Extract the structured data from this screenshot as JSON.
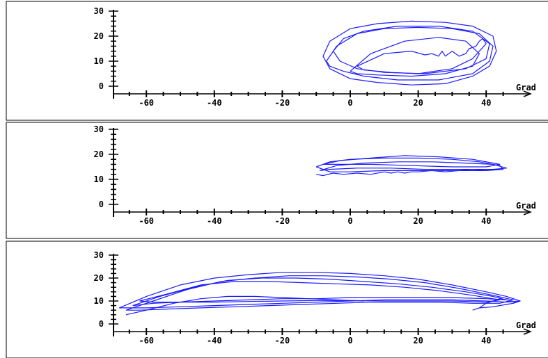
{
  "chart_data": [
    {
      "type": "line",
      "xlabel": "Grad",
      "ylabel": "",
      "xlim": [
        -70,
        50
      ],
      "ylim": [
        0,
        30
      ],
      "x_ticks": [
        "-60",
        "-40",
        "-20",
        "0",
        "20",
        "40"
      ],
      "y_ticks": [
        "0",
        "10",
        "20",
        "30"
      ],
      "grid": false,
      "color": "#1a1aff",
      "series": [
        {
          "x": [
            -8,
            -6,
            0,
            8,
            18,
            28,
            36,
            42,
            43,
            41,
            36,
            28,
            18,
            8,
            0,
            -6,
            -8
          ],
          "y": [
            12,
            18,
            23,
            25,
            26,
            25.5,
            24,
            20,
            14,
            8,
            4,
            1,
            0.5,
            1.5,
            3,
            7,
            12
          ]
        },
        {
          "x": [
            -7,
            -4,
            2,
            10,
            20,
            30,
            38,
            42,
            41,
            36,
            26,
            14,
            4,
            -2,
            -6,
            -7
          ],
          "y": [
            10,
            16,
            21,
            23,
            23.5,
            23,
            21,
            16,
            10,
            5,
            2.5,
            2.5,
            4,
            6,
            8,
            10
          ]
        },
        {
          "x": [
            -5,
            -2,
            4,
            14,
            26,
            36,
            41,
            40,
            34,
            22,
            10,
            2,
            -3,
            -5
          ],
          "y": [
            14,
            19,
            22,
            24,
            24,
            22,
            17,
            11,
            7,
            5,
            5.5,
            7,
            10,
            14
          ]
        },
        {
          "x": [
            0,
            6,
            16,
            26,
            34,
            38,
            36,
            28,
            18,
            8,
            2,
            0
          ],
          "y": [
            6,
            13,
            18,
            19.5,
            18,
            13,
            8,
            5,
            4,
            4.5,
            5,
            6
          ]
        },
        {
          "x": [
            2,
            10,
            18,
            22,
            24,
            26,
            27,
            28,
            29,
            30,
            32,
            34,
            35,
            37,
            38,
            39,
            40,
            36,
            30,
            20,
            12,
            4,
            2
          ],
          "y": [
            8,
            13,
            14,
            12.5,
            13,
            12,
            14,
            12,
            13,
            14,
            12,
            13,
            15,
            16,
            18,
            19,
            17,
            11,
            7,
            5,
            5.5,
            6.5,
            8
          ]
        }
      ]
    },
    {
      "type": "line",
      "xlabel": "Grad",
      "ylabel": "",
      "xlim": [
        -70,
        50
      ],
      "ylim": [
        0,
        30
      ],
      "x_ticks": [
        "-60",
        "-40",
        "-20",
        "0",
        "20",
        "40"
      ],
      "y_ticks": [
        "0",
        "10",
        "20",
        "30"
      ],
      "grid": false,
      "color": "#1a1aff",
      "series": [
        {
          "x": [
            -10,
            -6,
            0,
            10,
            20,
            30,
            38,
            44,
            45,
            40,
            30,
            20,
            10,
            0,
            -6,
            -10
          ],
          "y": [
            15,
            17,
            18,
            18.5,
            18.5,
            18,
            17,
            15.5,
            14,
            13.5,
            13.5,
            13.5,
            13.5,
            13,
            13,
            15
          ]
        },
        {
          "x": [
            -9,
            -4,
            4,
            14,
            24,
            34,
            42,
            46,
            42,
            32,
            22,
            12,
            2,
            -6,
            -9
          ],
          "y": [
            13.5,
            15.5,
            16.5,
            17,
            17,
            16.5,
            16,
            14.5,
            14,
            14,
            14,
            14.5,
            14.5,
            14,
            13.5
          ]
        },
        {
          "x": [
            -8,
            -3,
            6,
            16,
            26,
            36,
            44,
            40,
            30,
            18,
            6,
            -2,
            -8
          ],
          "y": [
            16,
            17.5,
            18.5,
            19.5,
            19,
            18,
            16,
            15,
            15,
            15.5,
            16,
            16,
            16
          ]
        },
        {
          "x": [
            -10,
            -8,
            -5,
            -2,
            2,
            6,
            10,
            12,
            14,
            16,
            18,
            20,
            24,
            28,
            32,
            36,
            40,
            44
          ],
          "y": [
            12,
            11.5,
            12.5,
            12,
            12.5,
            12,
            13,
            12.5,
            13,
            12.5,
            13,
            13,
            13.5,
            13,
            13.5,
            14,
            13.5,
            14
          ]
        }
      ]
    },
    {
      "type": "line",
      "xlabel": "Grad",
      "ylabel": "",
      "xlim": [
        -70,
        50
      ],
      "ylim": [
        0,
        30
      ],
      "x_ticks": [
        "-60",
        "-40",
        "-20",
        "0",
        "20",
        "40"
      ],
      "y_ticks": [
        "0",
        "10",
        "20",
        "30"
      ],
      "grid": false,
      "color": "#1a1aff",
      "series": [
        {
          "x": [
            -68,
            -60,
            -50,
            -40,
            -30,
            -20,
            -10,
            0,
            10,
            20,
            30,
            40,
            46,
            50,
            46,
            40,
            30,
            20,
            10,
            0,
            -10,
            -20,
            -30,
            -40,
            -50,
            -60,
            -68
          ],
          "y": [
            7,
            12,
            17,
            20,
            21.5,
            22.5,
            22.5,
            22,
            21,
            19.5,
            17,
            14,
            12,
            10,
            9.5,
            10,
            10.5,
            10.5,
            10.5,
            10,
            9.5,
            9,
            8.5,
            8,
            7.5,
            7,
            7
          ]
        },
        {
          "x": [
            -66,
            -58,
            -48,
            -38,
            -28,
            -18,
            -8,
            2,
            12,
            22,
            32,
            42,
            48,
            44,
            36,
            26,
            16,
            6,
            -4,
            -14,
            -24,
            -34,
            -44,
            -54,
            -62,
            -66
          ],
          "y": [
            6,
            10,
            15,
            18.5,
            20,
            21,
            21,
            20.5,
            19.5,
            18,
            15.5,
            12.5,
            10.5,
            9,
            9,
            9.5,
            9.5,
            9.5,
            9,
            8.5,
            8,
            7.5,
            7,
            6.5,
            6,
            6
          ]
        },
        {
          "x": [
            -64,
            -56,
            -46,
            -36,
            -26,
            -16,
            -6,
            4,
            14,
            24,
            34,
            42,
            46,
            40,
            30,
            20,
            10,
            0,
            -10,
            -20,
            -30,
            -40,
            -50,
            -58,
            -64
          ],
          "y": [
            8,
            12,
            16,
            19,
            20,
            20,
            19.5,
            18.5,
            17.5,
            16,
            14,
            12,
            10.5,
            11,
            11.5,
            11.5,
            11.5,
            11.5,
            11,
            11,
            10.5,
            10,
            9.5,
            9,
            8
          ]
        },
        {
          "x": [
            -62,
            -54,
            -44,
            -34,
            -24,
            -14,
            -4,
            6,
            16,
            26,
            36,
            44,
            40,
            30,
            20,
            10,
            0,
            -10,
            -20,
            -30,
            -40,
            -50,
            -58,
            -62
          ],
          "y": [
            10,
            13,
            17,
            18.5,
            18.5,
            18,
            17.5,
            17,
            16,
            14.5,
            12.5,
            10.5,
            9.5,
            10,
            10,
            10,
            10.2,
            10.2,
            10,
            9.8,
            9.5,
            9.5,
            9.5,
            10
          ]
        },
        {
          "x": [
            -66,
            -60,
            -52,
            -44,
            -36,
            -28,
            -20,
            -12,
            -4,
            4
          ],
          "y": [
            4,
            6,
            9,
            11,
            12,
            12,
            11.5,
            11,
            10.5,
            10
          ]
        },
        {
          "x": [
            36,
            38,
            40,
            42,
            44,
            46,
            48,
            50,
            48,
            46,
            44,
            42,
            40,
            38,
            36
          ],
          "y": [
            6,
            7,
            9,
            10,
            11,
            10.5,
            9.5,
            10,
            9,
            8.5,
            8,
            7.5,
            7.2,
            7,
            6
          ]
        }
      ]
    }
  ]
}
